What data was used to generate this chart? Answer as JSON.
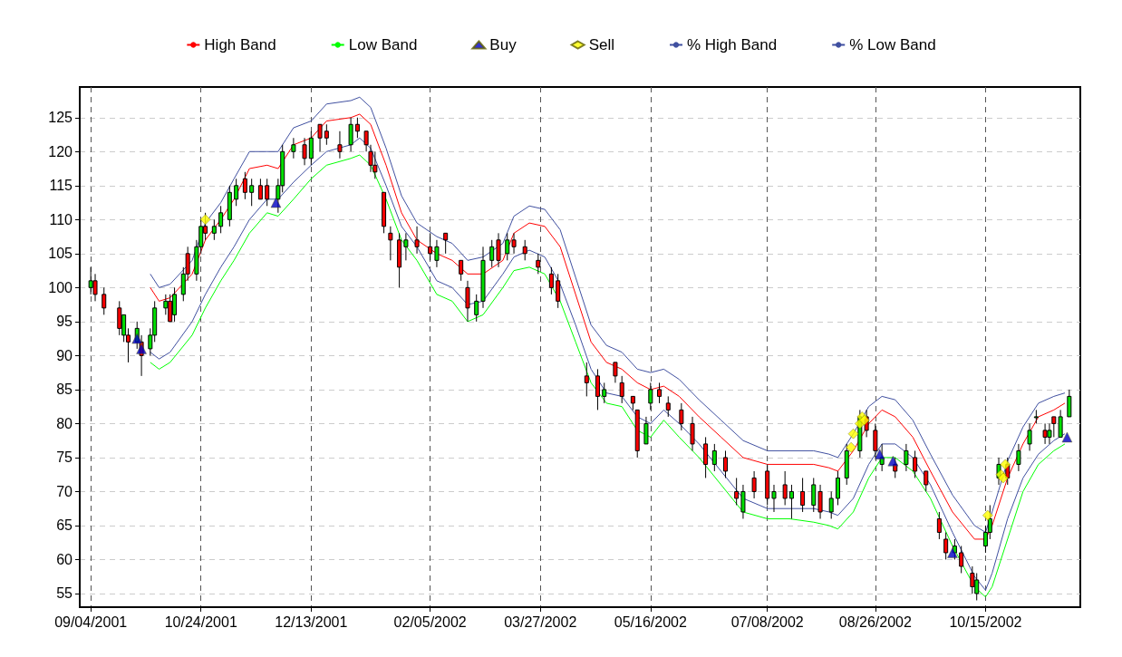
{
  "chart_data": {
    "type": "candlestick",
    "x": [
      "2001-09-04",
      "2001-09-06",
      "2001-09-10",
      "2001-09-17",
      "2001-09-19",
      "2001-09-21",
      "2001-09-25",
      "2001-09-27",
      "2001-10-01",
      "2001-10-03",
      "2001-10-08",
      "2001-10-10",
      "2001-10-12",
      "2001-10-16",
      "2001-10-18",
      "2001-10-22",
      "2001-10-24",
      "2001-10-26",
      "2001-10-30",
      "2001-11-02",
      "2001-11-06",
      "2001-11-09",
      "2001-11-13",
      "2001-11-16",
      "2001-11-20",
      "2001-11-23",
      "2001-11-28",
      "2001-11-30",
      "2001-12-05",
      "2001-12-10",
      "2001-12-13",
      "2001-12-17",
      "2001-12-20",
      "2001-12-26",
      "2001-12-31",
      "2002-01-03",
      "2002-01-07",
      "2002-01-09",
      "2002-01-11",
      "2002-01-15",
      "2002-01-18",
      "2002-01-22",
      "2002-01-25",
      "2002-01-30",
      "2002-02-05",
      "2002-02-08",
      "2002-02-12",
      "2002-02-19",
      "2002-02-22",
      "2002-02-26",
      "2002-03-01",
      "2002-03-05",
      "2002-03-08",
      "2002-03-12",
      "2002-03-15",
      "2002-03-20",
      "2002-03-26",
      "2002-04-01",
      "2002-04-04",
      "2002-04-17",
      "2002-04-22",
      "2002-04-25",
      "2002-04-30",
      "2002-05-03",
      "2002-05-08",
      "2002-05-10",
      "2002-05-14",
      "2002-05-16",
      "2002-05-20",
      "2002-05-24",
      "2002-05-30",
      "2002-06-04",
      "2002-06-10",
      "2002-06-14",
      "2002-06-19",
      "2002-06-24",
      "2002-06-27",
      "2002-07-02",
      "2002-07-08",
      "2002-07-11",
      "2002-07-16",
      "2002-07-19",
      "2002-07-24",
      "2002-07-29",
      "2002-08-01",
      "2002-08-06",
      "2002-08-09",
      "2002-08-13",
      "2002-08-19",
      "2002-08-22",
      "2002-08-26",
      "2002-08-29",
      "2002-09-04",
      "2002-09-09",
      "2002-09-13",
      "2002-09-18",
      "2002-09-24",
      "2002-09-27",
      "2002-10-01",
      "2002-10-04",
      "2002-10-09",
      "2002-10-11",
      "2002-10-15",
      "2002-10-17",
      "2002-10-21",
      "2002-10-25",
      "2002-10-30",
      "2002-11-04",
      "2002-11-07",
      "2002-11-11",
      "2002-11-13",
      "2002-11-15",
      "2002-11-18",
      "2002-11-22"
    ],
    "ohlc": [
      [
        100,
        103,
        99,
        101
      ],
      [
        101,
        102,
        98,
        99
      ],
      [
        99,
        100,
        96,
        97
      ],
      [
        97,
        98,
        93,
        94
      ],
      [
        93,
        96,
        92,
        96
      ],
      [
        93,
        94,
        89,
        92
      ],
      [
        92,
        95,
        91,
        94
      ],
      [
        92,
        93,
        87,
        90
      ],
      [
        91,
        94,
        90,
        93
      ],
      [
        93,
        98,
        92,
        97
      ],
      [
        97,
        99,
        96,
        98
      ],
      [
        98,
        99,
        95,
        95
      ],
      [
        96,
        100,
        95,
        99
      ],
      [
        99,
        103,
        98,
        102
      ],
      [
        105,
        106,
        101,
        102
      ],
      [
        102,
        107,
        101,
        106
      ],
      [
        106,
        110,
        105,
        109
      ],
      [
        109,
        111,
        107,
        108
      ],
      [
        108,
        110,
        107,
        109
      ],
      [
        109,
        112,
        108,
        111
      ],
      [
        110,
        115,
        109,
        114
      ],
      [
        113,
        116,
        112,
        115
      ],
      [
        116,
        117,
        113,
        114
      ],
      [
        114,
        116,
        112,
        115
      ],
      [
        115,
        116,
        113,
        113
      ],
      [
        115,
        116,
        112,
        113
      ],
      [
        113,
        116,
        111,
        115
      ],
      [
        115,
        121,
        114,
        120
      ],
      [
        120,
        122,
        119,
        121
      ],
      [
        121,
        122,
        118,
        119
      ],
      [
        119,
        123,
        118,
        122
      ],
      [
        124,
        124,
        120,
        122
      ],
      [
        123,
        124,
        121,
        122
      ],
      [
        121,
        123,
        119,
        120
      ],
      [
        121,
        125,
        120,
        124
      ],
      [
        124,
        125,
        122,
        123
      ],
      [
        123,
        123,
        120,
        121
      ],
      [
        120,
        121,
        117,
        118
      ],
      [
        118,
        120,
        116,
        117
      ],
      [
        114,
        114,
        108,
        109
      ],
      [
        108,
        109,
        104,
        107
      ],
      [
        107,
        108,
        100,
        103
      ],
      [
        106,
        108,
        104,
        107
      ],
      [
        107,
        109,
        105,
        106
      ],
      [
        106,
        108,
        104,
        105
      ],
      [
        104,
        107,
        103,
        106
      ],
      [
        108,
        108,
        105,
        107
      ],
      [
        104,
        104,
        101,
        102
      ],
      [
        100,
        101,
        95,
        97
      ],
      [
        96,
        99,
        95,
        98
      ],
      [
        98,
        106,
        97,
        104
      ],
      [
        104,
        107,
        103,
        106
      ],
      [
        107,
        108,
        103,
        104
      ],
      [
        105,
        108,
        104,
        107
      ],
      [
        107,
        108,
        105,
        106
      ],
      [
        106,
        107,
        104,
        105
      ],
      [
        104,
        105,
        102,
        103
      ],
      [
        102,
        103,
        99,
        100
      ],
      [
        101,
        102,
        97,
        98
      ],
      [
        87,
        89,
        84,
        86
      ],
      [
        87,
        88,
        82,
        84
      ],
      [
        84,
        86,
        83,
        85
      ],
      [
        89,
        89,
        86,
        87
      ],
      [
        86,
        87,
        83,
        84
      ],
      [
        84,
        84,
        82,
        83
      ],
      [
        82,
        82,
        75,
        76
      ],
      [
        77,
        81,
        77,
        80
      ],
      [
        83,
        86,
        82,
        85
      ],
      [
        85,
        86,
        83,
        84
      ],
      [
        83,
        84,
        81,
        82
      ],
      [
        82,
        83,
        79,
        80
      ],
      [
        80,
        81,
        76,
        77
      ],
      [
        77,
        78,
        72,
        74
      ],
      [
        74,
        77,
        73,
        76
      ],
      [
        75,
        76,
        72,
        73
      ],
      [
        70,
        72,
        68,
        69
      ],
      [
        67,
        71,
        66,
        70
      ],
      [
        72,
        73,
        69,
        70
      ],
      [
        73,
        74,
        68,
        69
      ],
      [
        69,
        71,
        67,
        70
      ],
      [
        71,
        73,
        68,
        69
      ],
      [
        69,
        71,
        66,
        70
      ],
      [
        70,
        72,
        67,
        68
      ],
      [
        68,
        72,
        67,
        71
      ],
      [
        70,
        71,
        66,
        67
      ],
      [
        67,
        70,
        66,
        69
      ],
      [
        69,
        73,
        68,
        72
      ],
      [
        72,
        77,
        71,
        76
      ],
      [
        76,
        82,
        75,
        81
      ],
      [
        81,
        82,
        78,
        79
      ],
      [
        79,
        80,
        75,
        76
      ],
      [
        74,
        77,
        73,
        75
      ],
      [
        74,
        75,
        72,
        73
      ],
      [
        74,
        77,
        73,
        76
      ],
      [
        75,
        76,
        72,
        73
      ],
      [
        73,
        73,
        70,
        71
      ],
      [
        66,
        67,
        63,
        64
      ],
      [
        63,
        64,
        60,
        61
      ],
      [
        61,
        63,
        60,
        62
      ],
      [
        61,
        62,
        58,
        59
      ],
      [
        58,
        59,
        55,
        56
      ],
      [
        55,
        58,
        54,
        57
      ],
      [
        62,
        65,
        61,
        64
      ],
      [
        64,
        68,
        63,
        66
      ],
      [
        72,
        75,
        71,
        74
      ],
      [
        74,
        75,
        71,
        72
      ],
      [
        74,
        77,
        73,
        76
      ],
      [
        77,
        80,
        76,
        79
      ],
      [
        81,
        82,
        80,
        81
      ],
      [
        79,
        80,
        77,
        78
      ],
      [
        78,
        80,
        77,
        79
      ],
      [
        81,
        81,
        78,
        80
      ],
      [
        78,
        82,
        78,
        81
      ],
      [
        81,
        85,
        81,
        84
      ]
    ],
    "series": [
      {
        "name": "High Band",
        "type": "line",
        "color": "#ff0000",
        "x": [
          "2001-10-01",
          "2001-10-05",
          "2001-10-10",
          "2001-10-20",
          "2001-10-26",
          "2001-11-02",
          "2001-11-08",
          "2001-11-15",
          "2001-11-23",
          "2001-11-28",
          "2001-12-05",
          "2001-12-13",
          "2001-12-20",
          "2001-12-31",
          "2002-01-04",
          "2002-01-09",
          "2002-01-16",
          "2002-01-23",
          "2002-01-30",
          "2002-02-08",
          "2002-02-15",
          "2002-02-22",
          "2002-03-01",
          "2002-03-10",
          "2002-03-15",
          "2002-03-22",
          "2002-03-29",
          "2002-04-05",
          "2002-04-12",
          "2002-04-19",
          "2002-04-26",
          "2002-05-03",
          "2002-05-10",
          "2002-05-16",
          "2002-05-22",
          "2002-05-29",
          "2002-06-07",
          "2002-06-17",
          "2002-06-27",
          "2002-07-08",
          "2002-07-18",
          "2002-07-29",
          "2002-08-05",
          "2002-08-09",
          "2002-08-16",
          "2002-08-23",
          "2002-08-29",
          "2002-09-04",
          "2002-09-12",
          "2002-09-20",
          "2002-09-30",
          "2002-10-10",
          "2002-10-15",
          "2002-10-18",
          "2002-10-25",
          "2002-11-01",
          "2002-11-08",
          "2002-11-15",
          "2002-11-20"
        ],
        "values": [
          100,
          98,
          98.5,
          102,
          107,
          110,
          113,
          117.5,
          118,
          117.5,
          121,
          122,
          124.5,
          125,
          125.5,
          124,
          118,
          111,
          107,
          105,
          104,
          102,
          102,
          104,
          108,
          109.5,
          109,
          106,
          99,
          92,
          89,
          88,
          86,
          85,
          85.5,
          84,
          81,
          78,
          75,
          74,
          74,
          74,
          73.5,
          73,
          76,
          80,
          82,
          81,
          78,
          73,
          67,
          63,
          63,
          65,
          72,
          77,
          81,
          82,
          83
        ]
      },
      {
        "name": "Low Band",
        "type": "line",
        "color": "#00ff00",
        "x": [
          "2001-10-01",
          "2001-10-05",
          "2001-10-10",
          "2001-10-20",
          "2001-10-26",
          "2001-11-02",
          "2001-11-08",
          "2001-11-15",
          "2001-11-23",
          "2001-11-28",
          "2001-12-05",
          "2001-12-13",
          "2001-12-20",
          "2001-12-31",
          "2002-01-04",
          "2002-01-09",
          "2002-01-16",
          "2002-01-23",
          "2002-01-30",
          "2002-02-08",
          "2002-02-15",
          "2002-02-22",
          "2002-03-01",
          "2002-03-10",
          "2002-03-15",
          "2002-03-22",
          "2002-03-29",
          "2002-04-05",
          "2002-04-12",
          "2002-04-19",
          "2002-04-26",
          "2002-05-03",
          "2002-05-10",
          "2002-05-16",
          "2002-05-22",
          "2002-05-29",
          "2002-06-07",
          "2002-06-17",
          "2002-06-27",
          "2002-07-08",
          "2002-07-18",
          "2002-07-29",
          "2002-08-05",
          "2002-08-09",
          "2002-08-16",
          "2002-08-23",
          "2002-08-29",
          "2002-09-04",
          "2002-09-12",
          "2002-09-20",
          "2002-09-30",
          "2002-10-10",
          "2002-10-15",
          "2002-10-18",
          "2002-10-25",
          "2002-11-01",
          "2002-11-08",
          "2002-11-15",
          "2002-11-20"
        ],
        "values": [
          89,
          88,
          89,
          93,
          97,
          101,
          104,
          108,
          111,
          110.5,
          113,
          116,
          118,
          119,
          119.5,
          118,
          113,
          107,
          104,
          99,
          98,
          95,
          96,
          100,
          102.5,
          103,
          102,
          98,
          92,
          86,
          83,
          82.5,
          79,
          78,
          80.5,
          78,
          75,
          71,
          67,
          66,
          66,
          65.5,
          65,
          64.5,
          67,
          72,
          75,
          75,
          73,
          69,
          62,
          56,
          54.5,
          56,
          63,
          70,
          74,
          76,
          77
        ]
      },
      {
        "name": "Buy",
        "type": "scatter",
        "marker": "triangle",
        "color": "#0000c0",
        "x": [
          "2001-09-25",
          "2001-09-27",
          "2001-11-27",
          "2002-08-28",
          "2002-09-03",
          "2002-09-30",
          "2002-11-21"
        ],
        "values": [
          92.5,
          91,
          112.5,
          75.5,
          74.5,
          61,
          78
        ]
      },
      {
        "name": "Sell",
        "type": "scatter",
        "marker": "diamond",
        "color": "#ffff00",
        "x": [
          "2001-10-26",
          "2002-08-15",
          "2002-08-16",
          "2002-08-19",
          "2002-08-20",
          "2002-08-21",
          "2002-10-16",
          "2002-10-22",
          "2002-10-23",
          "2002-10-24"
        ],
        "values": [
          110,
          76.5,
          78.5,
          80,
          81,
          80.5,
          66.5,
          72.5,
          72,
          74
        ]
      },
      {
        "name": "% High Band",
        "type": "line",
        "color": "#4050a0",
        "x": [
          "2001-10-01",
          "2001-10-05",
          "2001-10-10",
          "2001-10-20",
          "2001-10-26",
          "2001-11-02",
          "2001-11-08",
          "2001-11-15",
          "2001-11-23",
          "2001-11-28",
          "2001-12-05",
          "2001-12-13",
          "2001-12-20",
          "2001-12-31",
          "2002-01-04",
          "2002-01-09",
          "2002-01-16",
          "2002-01-23",
          "2002-01-30",
          "2002-02-08",
          "2002-02-15",
          "2002-02-22",
          "2002-03-01",
          "2002-03-10",
          "2002-03-15",
          "2002-03-22",
          "2002-03-29",
          "2002-04-05",
          "2002-04-12",
          "2002-04-19",
          "2002-04-26",
          "2002-05-03",
          "2002-05-10",
          "2002-05-16",
          "2002-05-22",
          "2002-05-29",
          "2002-06-07",
          "2002-06-17",
          "2002-06-27",
          "2002-07-08",
          "2002-07-18",
          "2002-07-29",
          "2002-08-05",
          "2002-08-09",
          "2002-08-16",
          "2002-08-23",
          "2002-08-29",
          "2002-09-04",
          "2002-09-12",
          "2002-09-20",
          "2002-09-30",
          "2002-10-10",
          "2002-10-15",
          "2002-10-18",
          "2002-10-25",
          "2002-11-01",
          "2002-11-08",
          "2002-11-15",
          "2002-11-20"
        ],
        "values": [
          102,
          100,
          100.5,
          104,
          109.5,
          112.5,
          116,
          120,
          120,
          120,
          123.5,
          124.5,
          127,
          127.5,
          128,
          126.5,
          120.5,
          113.5,
          109.5,
          107.5,
          106.5,
          104,
          104.5,
          106.5,
          110.5,
          112,
          111.5,
          108.5,
          101.5,
          94.5,
          91.5,
          90.5,
          88,
          87.5,
          88,
          86.5,
          83.5,
          80.5,
          77.5,
          76,
          76,
          76,
          75.5,
          75,
          78.5,
          82.5,
          84,
          83.5,
          80.5,
          75.5,
          69.5,
          65,
          64,
          67,
          74.5,
          79.5,
          83,
          84,
          84.5
        ]
      },
      {
        "name": "% Low Band",
        "type": "line",
        "color": "#4050a0",
        "x": [
          "2001-10-01",
          "2001-10-05",
          "2001-10-10",
          "2001-10-20",
          "2001-10-26",
          "2001-11-02",
          "2001-11-08",
          "2001-11-15",
          "2001-11-23",
          "2001-11-28",
          "2001-12-05",
          "2001-12-13",
          "2001-12-20",
          "2001-12-31",
          "2002-01-04",
          "2002-01-09",
          "2002-01-16",
          "2002-01-23",
          "2002-01-30",
          "2002-02-08",
          "2002-02-15",
          "2002-02-22",
          "2002-03-01",
          "2002-03-10",
          "2002-03-15",
          "2002-03-22",
          "2002-03-29",
          "2002-04-05",
          "2002-04-12",
          "2002-04-19",
          "2002-04-26",
          "2002-05-03",
          "2002-05-10",
          "2002-05-16",
          "2002-05-22",
          "2002-05-29",
          "2002-06-07",
          "2002-06-17",
          "2002-06-27",
          "2002-07-08",
          "2002-07-18",
          "2002-07-29",
          "2002-08-05",
          "2002-08-09",
          "2002-08-16",
          "2002-08-23",
          "2002-08-29",
          "2002-09-04",
          "2002-09-12",
          "2002-09-20",
          "2002-09-30",
          "2002-10-10",
          "2002-10-15",
          "2002-10-18",
          "2002-10-25",
          "2002-11-01",
          "2002-11-08",
          "2002-11-15",
          "2002-11-20"
        ],
        "values": [
          90.5,
          89.5,
          90.5,
          95,
          99,
          103,
          106,
          110,
          113,
          113,
          115.5,
          118,
          120,
          121,
          122,
          120.5,
          115,
          109,
          106,
          101,
          100,
          97.5,
          98,
          102,
          104.5,
          105.5,
          104.5,
          100.5,
          94.5,
          88,
          84.5,
          84,
          81,
          80,
          82,
          80,
          77,
          73,
          69,
          67.5,
          67.5,
          67.5,
          67,
          66.5,
          69,
          74,
          77,
          77,
          75,
          71,
          64,
          57.5,
          55.5,
          58,
          66,
          72,
          75.5,
          77.5,
          78.5
        ]
      }
    ],
    "xlim": [
      "2001-08-30",
      "2002-11-27"
    ],
    "xticks": [
      {
        "value": "2001-09-04",
        "label": "09/04/2001"
      },
      {
        "value": "2001-10-24",
        "label": "10/24/2001"
      },
      {
        "value": "2001-12-13",
        "label": "12/13/2001"
      },
      {
        "value": "2002-02-05",
        "label": "02/05/2002"
      },
      {
        "value": "2002-03-27",
        "label": "03/27/2002"
      },
      {
        "value": "2002-05-16",
        "label": "05/16/2002"
      },
      {
        "value": "2002-07-08",
        "label": "07/08/2002"
      },
      {
        "value": "2002-08-26",
        "label": "08/26/2002"
      },
      {
        "value": "2002-10-15",
        "label": "10/15/2002"
      }
    ],
    "ylim": [
      53,
      129.5
    ],
    "yticks": [
      55,
      60,
      65,
      70,
      75,
      80,
      85,
      90,
      95,
      100,
      105,
      110,
      115,
      120,
      125
    ],
    "grid": true,
    "legend": "top"
  }
}
